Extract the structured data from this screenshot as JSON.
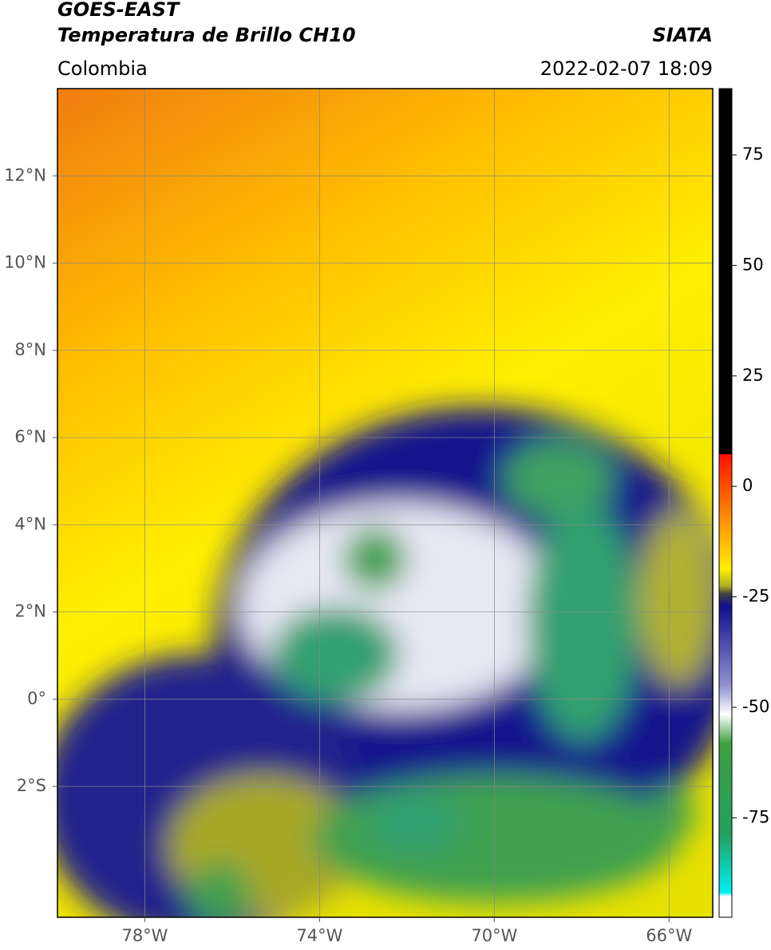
{
  "title": "GOES-EAST",
  "subtitle": "Temperatura de Brillo CH10",
  "source": "SIATA",
  "region": "Colombia",
  "timestamp": "2022-02-07 18:09",
  "map": {
    "xlim": [
      -80,
      -65
    ],
    "ylim": [
      -5,
      14
    ],
    "xticks": [
      {
        "value": -78,
        "label": "78°W"
      },
      {
        "value": -74,
        "label": "74°W"
      },
      {
        "value": -70,
        "label": "70°W"
      },
      {
        "value": -66,
        "label": "66°W"
      }
    ],
    "yticks": [
      {
        "value": 12,
        "label": "12°N"
      },
      {
        "value": 10,
        "label": "10°N"
      },
      {
        "value": 8,
        "label": "8°N"
      },
      {
        "value": 6,
        "label": "6°N"
      },
      {
        "value": 4,
        "label": "4°N"
      },
      {
        "value": 2,
        "label": "2°N"
      },
      {
        "value": 0,
        "label": "0°"
      },
      {
        "value": -2,
        "label": "2°S"
      }
    ],
    "grid": true
  },
  "colorbar": {
    "ylim": [
      -97.5,
      90
    ],
    "yticks": [
      75,
      50,
      25,
      0,
      -25,
      -50,
      -75
    ]
  }
}
